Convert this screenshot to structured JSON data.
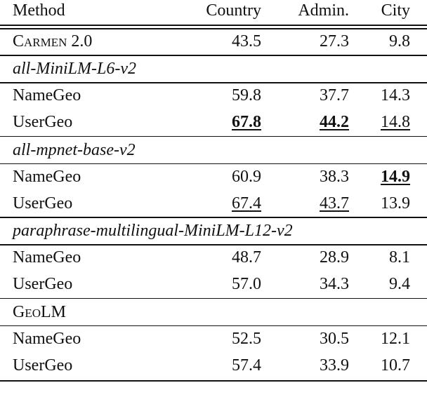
{
  "table": {
    "header": [
      "Method",
      "Country",
      "Admin.",
      "City"
    ],
    "baseline": {
      "method": "Carmen 2.0",
      "values": [
        "43.5",
        "27.3",
        "9.8"
      ]
    },
    "groups": [
      {
        "name": "all-MiniLM-L6-v2",
        "rows": [
          {
            "method": "NameGeo",
            "values": [
              "59.8",
              "37.7",
              "14.3"
            ]
          },
          {
            "method": "UserGeo",
            "values": [
              "67.8",
              "44.2",
              "14.8"
            ]
          }
        ]
      },
      {
        "name": "all-mpnet-base-v2",
        "rows": [
          {
            "method": "NameGeo",
            "values": [
              "60.9",
              "38.3",
              "14.9"
            ]
          },
          {
            "method": "UserGeo",
            "values": [
              "67.4",
              "43.7",
              "13.9"
            ]
          }
        ]
      },
      {
        "name": "paraphrase-multilingual-MiniLM-L12-v2",
        "rows": [
          {
            "method": "NameGeo",
            "values": [
              "48.7",
              "28.9",
              "8.1"
            ]
          },
          {
            "method": "UserGeo",
            "values": [
              "57.0",
              "34.3",
              "9.4"
            ]
          }
        ]
      },
      {
        "name": "GeoLM",
        "rows": [
          {
            "method": "NameGeo",
            "values": [
              "52.5",
              "30.5",
              "12.1"
            ]
          },
          {
            "method": "UserGeo",
            "values": [
              "57.4",
              "33.9",
              "10.7"
            ]
          }
        ]
      }
    ]
  }
}
